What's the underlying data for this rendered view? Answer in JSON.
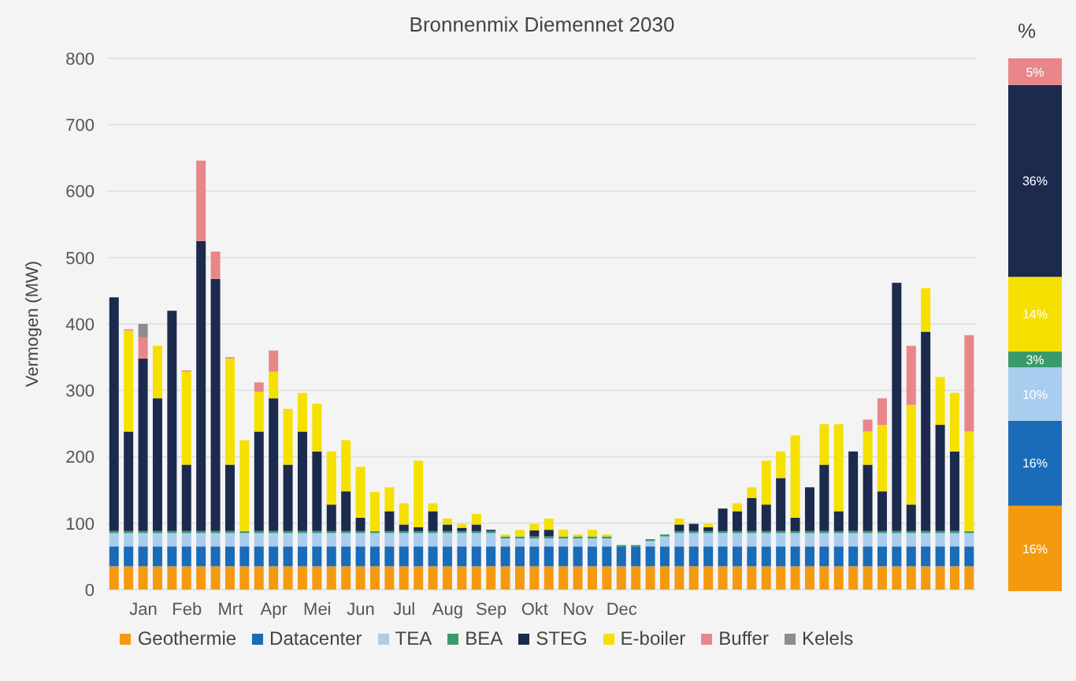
{
  "chart_data": [
    {
      "type": "bar",
      "stacked": true,
      "title": "Bronnenmix Diemennet 2030",
      "ylabel": "Vermogen (MW)",
      "ylim": [
        0,
        800
      ],
      "yticks": [
        0,
        100,
        200,
        300,
        400,
        500,
        600,
        700,
        800
      ],
      "grid": "y",
      "legend": "bottom",
      "categories": [
        null,
        null,
        "Jan",
        null,
        null,
        "Feb",
        null,
        null,
        "Mrt",
        null,
        null,
        "Apr",
        null,
        null,
        "Mei",
        null,
        null,
        "Jun",
        null,
        null,
        "Jul",
        null,
        null,
        "Aug",
        null,
        null,
        "Sep",
        null,
        null,
        "Okt",
        null,
        null,
        "Nov",
        null,
        null,
        "Dec",
        null,
        null,
        null,
        null,
        null,
        null,
        null,
        null,
        null,
        null,
        null,
        null,
        null,
        null,
        null,
        null,
        null,
        null,
        null,
        null,
        null,
        null,
        null,
        null
      ],
      "series": [
        {
          "name": "Geothermie",
          "color": "#f59a0f",
          "values": [
            35,
            35,
            35,
            35,
            35,
            35,
            35,
            35,
            35,
            35,
            35,
            35,
            35,
            35,
            35,
            35,
            35,
            35,
            35,
            35,
            35,
            35,
            35,
            35,
            35,
            35,
            35,
            35,
            35,
            35,
            35,
            35,
            35,
            35,
            35,
            35,
            35,
            35,
            35,
            35,
            35,
            35,
            35,
            35,
            35,
            35,
            35,
            35,
            35,
            35,
            35,
            35,
            35,
            35,
            35,
            35,
            35,
            35,
            35,
            35
          ]
        },
        {
          "name": "Datacenter",
          "color": "#1a6bb8",
          "values": [
            30,
            30,
            30,
            30,
            30,
            30,
            30,
            30,
            30,
            30,
            30,
            30,
            30,
            30,
            30,
            30,
            30,
            30,
            30,
            30,
            30,
            30,
            30,
            30,
            30,
            30,
            30,
            30,
            30,
            30,
            30,
            30,
            30,
            30,
            30,
            30,
            30,
            30,
            30,
            30,
            30,
            30,
            30,
            30,
            30,
            30,
            30,
            30,
            30,
            30,
            30,
            30,
            30,
            30,
            30,
            30,
            30,
            30,
            30,
            30
          ]
        },
        {
          "name": "TEA",
          "color": "#a9cdef",
          "values": [
            20,
            20,
            20,
            20,
            20,
            20,
            20,
            20,
            20,
            20,
            20,
            20,
            20,
            20,
            20,
            20,
            20,
            20,
            20,
            20,
            20,
            20,
            20,
            20,
            20,
            20,
            20,
            12,
            12,
            12,
            12,
            12,
            12,
            12,
            12,
            0,
            0,
            8,
            15,
            20,
            20,
            20,
            20,
            20,
            20,
            20,
            20,
            20,
            20,
            20,
            20,
            20,
            20,
            20,
            20,
            20,
            20,
            20,
            20,
            20
          ]
        },
        {
          "name": "BEA",
          "color": "#3a9a6a",
          "values": [
            3,
            3,
            3,
            3,
            3,
            3,
            3,
            3,
            3,
            3,
            3,
            3,
            3,
            3,
            3,
            3,
            3,
            3,
            3,
            3,
            3,
            3,
            3,
            3,
            3,
            3,
            3,
            3,
            3,
            3,
            3,
            3,
            3,
            3,
            3,
            2,
            2,
            3,
            3,
            3,
            3,
            3,
            3,
            3,
            3,
            3,
            3,
            3,
            3,
            3,
            3,
            3,
            3,
            3,
            3,
            3,
            3,
            3,
            3,
            3
          ]
        },
        {
          "name": "STEG",
          "color": "#1c2a4e",
          "values": [
            352,
            150,
            260,
            200,
            332,
            100,
            437,
            380,
            100,
            0,
            150,
            200,
            100,
            150,
            120,
            40,
            60,
            20,
            0,
            30,
            10,
            6,
            30,
            10,
            5,
            10,
            2,
            0,
            0,
            9,
            10,
            0,
            0,
            0,
            0,
            0,
            0,
            0,
            0,
            10,
            11,
            6,
            34,
            30,
            50,
            40,
            80,
            20,
            66,
            100,
            30,
            120,
            100,
            60,
            374,
            40,
            300,
            160,
            120,
            0
          ]
        },
        {
          "name": "E-boiler",
          "color": "#f5e000",
          "values": [
            0,
            152,
            0,
            79,
            0,
            140,
            0,
            0,
            160,
            137,
            60,
            40,
            84,
            58,
            72,
            80,
            77,
            77,
            59,
            36,
            32,
            100,
            12,
            9,
            6,
            16,
            0,
            3,
            10,
            10,
            17,
            10,
            3,
            10,
            3,
            0,
            0,
            0,
            0,
            9,
            0,
            5,
            0,
            12,
            16,
            66,
            40,
            124,
            0,
            61,
            131,
            0,
            50,
            100,
            0,
            150,
            66,
            72,
            88,
            150
          ]
        },
        {
          "name": "Buffer",
          "color": "#e8868a",
          "values": [
            0,
            2,
            32,
            0,
            0,
            2,
            121,
            41,
            2,
            0,
            14,
            32,
            0,
            0,
            0,
            0,
            0,
            0,
            0,
            0,
            0,
            0,
            0,
            0,
            0,
            0,
            0,
            0,
            0,
            0,
            0,
            0,
            0,
            0,
            0,
            0,
            0,
            0,
            0,
            0,
            0,
            0,
            0,
            0,
            0,
            0,
            0,
            0,
            0,
            0,
            0,
            0,
            18,
            40,
            0,
            89,
            0,
            0,
            0,
            145
          ]
        },
        {
          "name": "Kelels",
          "color": "#8c8c8c",
          "values": [
            0,
            0,
            20,
            0,
            0,
            0,
            0,
            0,
            0,
            0,
            0,
            0,
            0,
            0,
            0,
            0,
            0,
            0,
            0,
            0,
            0,
            0,
            0,
            0,
            0,
            0,
            0,
            0,
            0,
            0,
            0,
            0,
            0,
            0,
            0,
            0,
            0,
            0,
            0,
            0,
            0,
            0,
            0,
            0,
            0,
            0,
            0,
            0,
            0,
            0,
            0,
            0,
            0,
            0,
            0,
            0,
            0,
            0,
            0,
            0
          ]
        }
      ]
    },
    {
      "type": "bar",
      "stacked": true,
      "ylabel": "%",
      "categories": [
        null
      ],
      "series": [
        {
          "color": "#f59a0f",
          "values": [
            16
          ],
          "value_labels": [
            "16%"
          ]
        },
        {
          "color": "#1a6bb8",
          "values": [
            16
          ],
          "value_labels": [
            "16%"
          ]
        },
        {
          "color": "#a9cdef",
          "values": [
            10
          ],
          "value_labels": [
            "10%"
          ]
        },
        {
          "color": "#3a9a6a",
          "values": [
            3
          ],
          "value_labels": [
            "3%"
          ]
        },
        {
          "color": "#f5e000",
          "values": [
            14
          ],
          "value_labels": [
            "14%"
          ]
        },
        {
          "color": "#1c2a4e",
          "values": [
            36
          ],
          "value_labels": [
            "36%"
          ]
        },
        {
          "color": "#e8868a",
          "values": [
            5
          ],
          "value_labels": [
            "5%"
          ]
        }
      ]
    }
  ]
}
